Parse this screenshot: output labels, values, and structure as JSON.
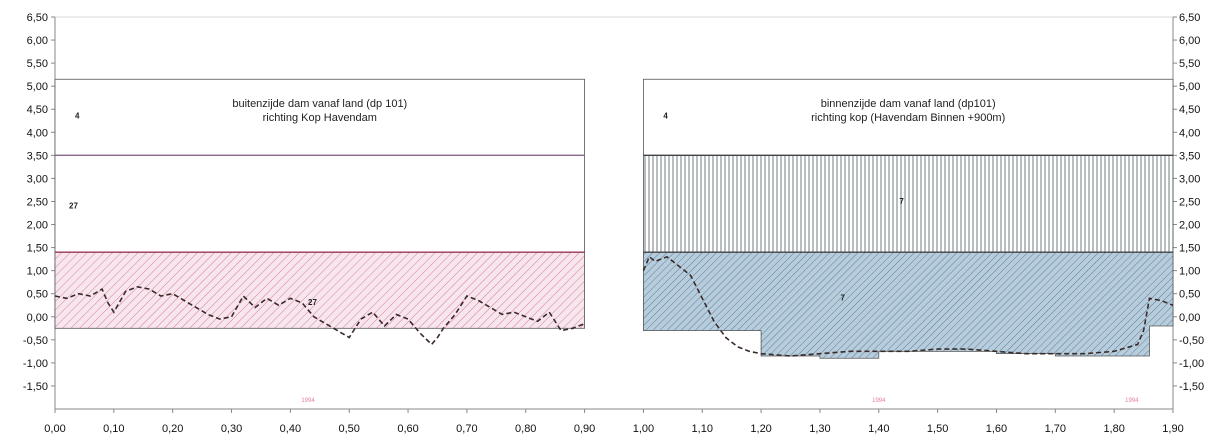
{
  "chart_data": {
    "type": "area",
    "x_ticks": [
      "0,00",
      "0,10",
      "0,20",
      "0,30",
      "0,40",
      "0,50",
      "0,60",
      "0,70",
      "0,80",
      "0,90",
      "1,00",
      "1,10",
      "1,20",
      "1,30",
      "1,40",
      "1,50",
      "1,60",
      "1,70",
      "1,80",
      "1,90"
    ],
    "y_ticks": [
      "6,50",
      "6,00",
      "5,50",
      "5,00",
      "4,50",
      "4,00",
      "3,50",
      "3,00",
      "2,50",
      "2,00",
      "1,50",
      "1,00",
      "0,50",
      "0,00",
      "-0,50",
      "-1,00",
      "-1,50"
    ],
    "xlim": [
      0,
      1.9
    ],
    "ylim": [
      -2.0,
      6.5
    ],
    "colors": {
      "hatch_pink": "#d87a9a",
      "fill_pink": "#f7e6ee",
      "hatch_blue": "#5a7e9c",
      "fill_blue": "#b7cddc",
      "vertical_hatch": "#4a5c68",
      "profile": "#3a2a2a",
      "axis": "#888888"
    },
    "panels": [
      {
        "title_line1": "buitenzijde dam vanaf land (dp 101)",
        "title_line2": "richting Kop Havendam",
        "x_range": [
          0.0,
          0.9
        ],
        "outline_top": 5.15,
        "layers": [
          {
            "label": "4",
            "y_bottom": 3.5,
            "y_top": 5.15,
            "pattern": "none"
          },
          {
            "label": "27",
            "y_bottom": 1.4,
            "y_top": 3.5,
            "pattern": "none"
          },
          {
            "label": "27",
            "y_bottom": -0.25,
            "y_top": 1.4,
            "pattern": "diagonal-pink"
          }
        ],
        "faint_label": "1994",
        "profile": {
          "x": [
            0.0,
            0.02,
            0.04,
            0.06,
            0.08,
            0.09,
            0.1,
            0.12,
            0.14,
            0.16,
            0.18,
            0.2,
            0.22,
            0.24,
            0.26,
            0.28,
            0.3,
            0.32,
            0.34,
            0.36,
            0.38,
            0.4,
            0.42,
            0.44,
            0.46,
            0.48,
            0.5,
            0.52,
            0.54,
            0.56,
            0.58,
            0.6,
            0.62,
            0.64,
            0.65,
            0.66,
            0.68,
            0.7,
            0.72,
            0.74,
            0.76,
            0.78,
            0.8,
            0.82,
            0.84,
            0.86,
            0.88,
            0.9
          ],
          "y": [
            0.45,
            0.4,
            0.5,
            0.45,
            0.6,
            0.3,
            0.1,
            0.55,
            0.65,
            0.6,
            0.45,
            0.5,
            0.35,
            0.2,
            0.05,
            -0.05,
            0.0,
            0.45,
            0.2,
            0.4,
            0.25,
            0.4,
            0.3,
            0.0,
            -0.15,
            -0.3,
            -0.45,
            -0.05,
            0.1,
            -0.2,
            0.05,
            -0.05,
            -0.35,
            -0.6,
            -0.45,
            -0.25,
            0.05,
            0.45,
            0.35,
            0.2,
            0.05,
            0.1,
            0.0,
            -0.1,
            0.1,
            -0.3,
            -0.25,
            -0.15
          ]
        }
      },
      {
        "title_line1": "binnenzijde dam vanaf land (dp101)",
        "title_line2": "richting kop (Havendam Binnen +900m)",
        "x_range": [
          1.0,
          1.9
        ],
        "outline_top": 5.15,
        "layers": [
          {
            "label": "4",
            "y_bottom": 3.5,
            "y_top": 5.15,
            "pattern": "none"
          },
          {
            "label": "7",
            "y_bottom": 1.4,
            "y_top": 3.5,
            "pattern": "vertical"
          },
          {
            "label": "7",
            "y_bottom": null,
            "y_top": 1.4,
            "pattern": "diagonal-blue"
          }
        ],
        "faint_labels": [
          "1994",
          "1994"
        ],
        "bottom_step": {
          "x": [
            1.0,
            1.2,
            1.2,
            1.3,
            1.3,
            1.4,
            1.4,
            1.6,
            1.6,
            1.7,
            1.7,
            1.86,
            1.86,
            1.9
          ],
          "y": [
            -0.3,
            -0.3,
            -0.85,
            -0.85,
            -0.9,
            -0.9,
            -0.75,
            -0.75,
            -0.8,
            -0.8,
            -0.85,
            -0.85,
            -0.2,
            -0.2
          ]
        },
        "profile": {
          "x": [
            1.0,
            1.01,
            1.02,
            1.04,
            1.06,
            1.08,
            1.1,
            1.12,
            1.14,
            1.16,
            1.18,
            1.2,
            1.25,
            1.3,
            1.35,
            1.4,
            1.45,
            1.5,
            1.55,
            1.6,
            1.65,
            1.7,
            1.75,
            1.8,
            1.84,
            1.85,
            1.86,
            1.88,
            1.9
          ],
          "y": [
            1.0,
            1.3,
            1.2,
            1.3,
            1.1,
            0.9,
            0.4,
            -0.1,
            -0.45,
            -0.65,
            -0.75,
            -0.8,
            -0.85,
            -0.8,
            -0.75,
            -0.75,
            -0.75,
            -0.7,
            -0.7,
            -0.75,
            -0.8,
            -0.8,
            -0.8,
            -0.75,
            -0.6,
            -0.3,
            0.4,
            0.35,
            0.25
          ]
        }
      }
    ]
  }
}
